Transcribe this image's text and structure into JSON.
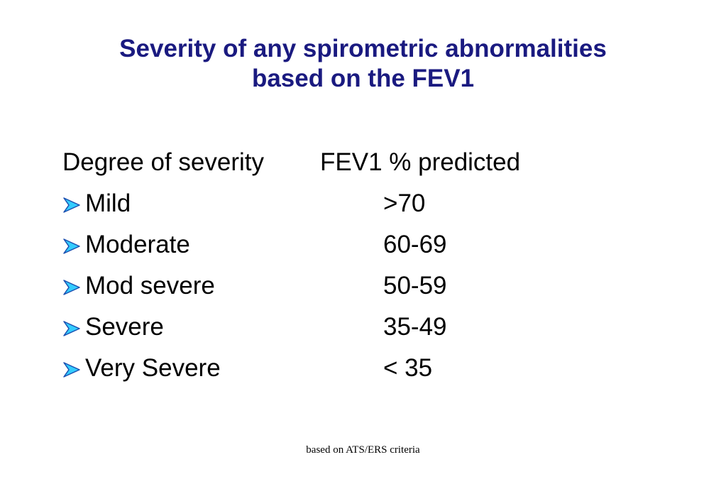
{
  "slide": {
    "title_line1": "Severity of any spirometric abnormalities",
    "title_line2": "based on the FEV1",
    "table": {
      "headers": [
        "Degree of severity",
        "FEV1 % predicted"
      ],
      "rows": [
        {
          "label": "Mild",
          "value": ">70"
        },
        {
          "label": "Moderate",
          "value": "60-69"
        },
        {
          "label": "Mod severe",
          "value": "50-59"
        },
        {
          "label": "Severe",
          "value": "35-49"
        },
        {
          "label": "Very Severe",
          "value": "< 35"
        }
      ]
    },
    "bullet_icon": "arrow-bullet-icon",
    "colors": {
      "title": "#1a1a80",
      "bullet_fill": "#33ccff",
      "bullet_stroke": "#1a4fb0",
      "text": "#000000"
    },
    "footnote": "based on ATS/ERS criteria"
  }
}
